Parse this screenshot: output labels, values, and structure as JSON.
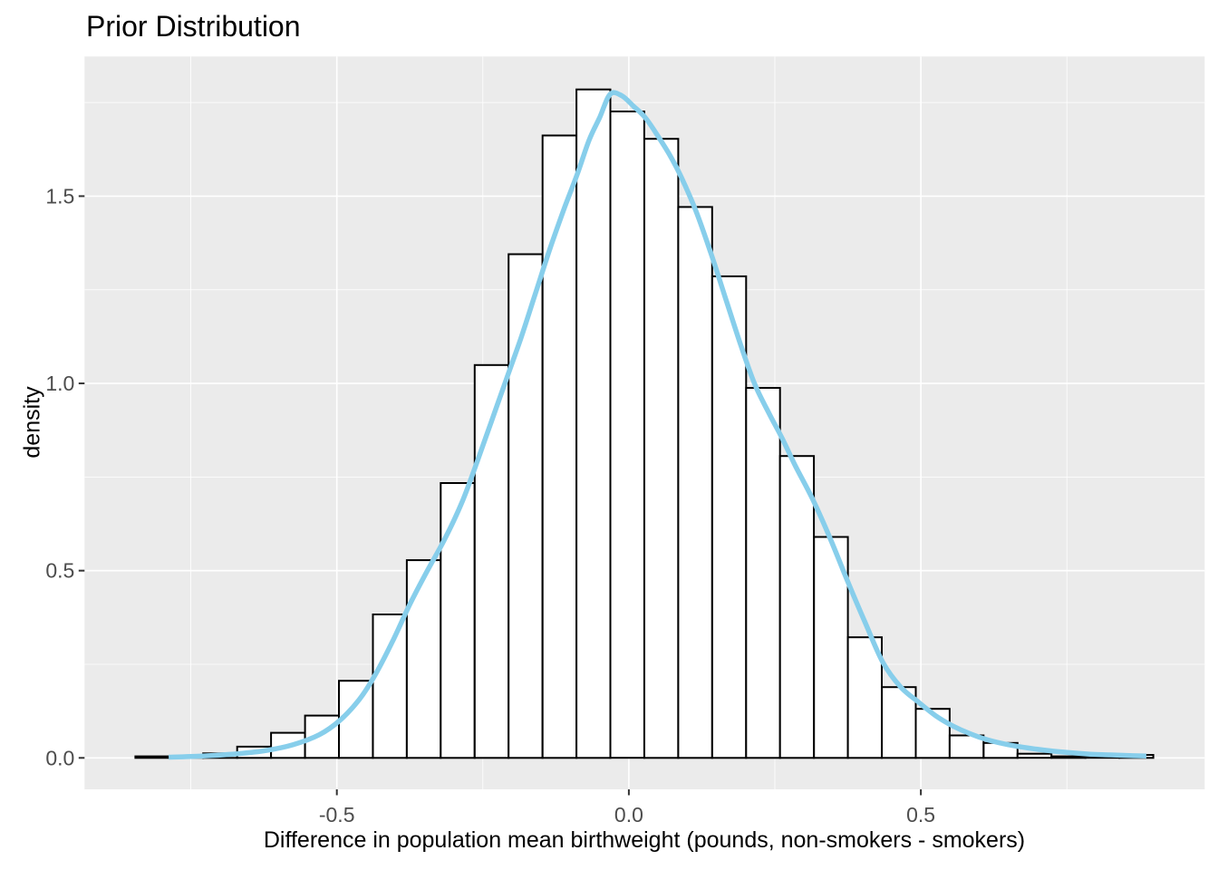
{
  "chart_data": {
    "type": "bar",
    "subtype": "histogram-with-density-overlay",
    "title": "Prior Distribution",
    "xlabel": "Difference in population mean birthweight (pounds, non-smokers - smokers)",
    "ylabel": "density",
    "xlim": [
      -0.932,
      0.986
    ],
    "ylim": [
      -0.084,
      1.873
    ],
    "grid": true,
    "legend_position": "none",
    "x_ticks": {
      "values": [
        -0.5,
        0.0,
        0.5
      ],
      "labels": [
        "-0.5",
        "0.0",
        "0.5"
      ]
    },
    "y_ticks": {
      "values": [
        0.0,
        0.5,
        1.0,
        1.5
      ],
      "labels": [
        "0.0",
        "0.5",
        "1.0",
        "1.5"
      ]
    },
    "x_minor_gridlines": [
      -0.75,
      -0.25,
      0.25,
      0.75
    ],
    "y_minor_gridlines": [
      0.25,
      0.75,
      1.25,
      1.75
    ],
    "histogram": {
      "bin_start": -0.845,
      "binwidth": 0.0581,
      "heights": [
        0.004,
        0.003,
        0.012,
        0.03,
        0.067,
        0.113,
        0.206,
        0.383,
        0.528,
        0.734,
        1.049,
        1.345,
        1.662,
        1.785,
        1.726,
        1.653,
        1.471,
        1.286,
        0.988,
        0.806,
        0.59,
        0.322,
        0.189,
        0.131,
        0.06,
        0.04,
        0.011,
        0.004,
        0.003,
        0.008
      ]
    },
    "density_curve": {
      "peak": {
        "x": -0.032,
        "y": 1.772
      },
      "points": [
        [
          -0.788,
          0.002
        ],
        [
          -0.73,
          0.005
        ],
        [
          -0.67,
          0.011
        ],
        [
          -0.62,
          0.02
        ],
        [
          -0.575,
          0.035
        ],
        [
          -0.53,
          0.062
        ],
        [
          -0.495,
          0.1
        ],
        [
          -0.462,
          0.155
        ],
        [
          -0.435,
          0.22
        ],
        [
          -0.405,
          0.31
        ],
        [
          -0.375,
          0.41
        ],
        [
          -0.345,
          0.5
        ],
        [
          -0.315,
          0.585
        ],
        [
          -0.285,
          0.685
        ],
        [
          -0.26,
          0.79
        ],
        [
          -0.235,
          0.9
        ],
        [
          -0.21,
          1.01
        ],
        [
          -0.185,
          1.12
        ],
        [
          -0.16,
          1.24
        ],
        [
          -0.135,
          1.36
        ],
        [
          -0.11,
          1.47
        ],
        [
          -0.088,
          1.56
        ],
        [
          -0.068,
          1.65
        ],
        [
          -0.05,
          1.71
        ],
        [
          -0.032,
          1.772
        ],
        [
          -0.012,
          1.768
        ],
        [
          0.008,
          1.74
        ],
        [
          0.028,
          1.71
        ],
        [
          0.05,
          1.66
        ],
        [
          0.07,
          1.61
        ],
        [
          0.09,
          1.55
        ],
        [
          0.115,
          1.46
        ],
        [
          0.14,
          1.35
        ],
        [
          0.165,
          1.23
        ],
        [
          0.19,
          1.11
        ],
        [
          0.215,
          1.0
        ],
        [
          0.24,
          0.92
        ],
        [
          0.262,
          0.855
        ],
        [
          0.285,
          0.78
        ],
        [
          0.315,
          0.69
        ],
        [
          0.345,
          0.585
        ],
        [
          0.375,
          0.47
        ],
        [
          0.405,
          0.36
        ],
        [
          0.435,
          0.255
        ],
        [
          0.465,
          0.19
        ],
        [
          0.495,
          0.15
        ],
        [
          0.525,
          0.113
        ],
        [
          0.555,
          0.085
        ],
        [
          0.585,
          0.064
        ],
        [
          0.615,
          0.048
        ],
        [
          0.65,
          0.035
        ],
        [
          0.685,
          0.026
        ],
        [
          0.72,
          0.019
        ],
        [
          0.755,
          0.014
        ],
        [
          0.79,
          0.01
        ],
        [
          0.825,
          0.008
        ],
        [
          0.858,
          0.006
        ],
        [
          0.886,
          0.005
        ]
      ]
    },
    "colors": {
      "panel_background": "#EBEBEB",
      "gridline": "#FFFFFF",
      "bar_fill": "#FFFFFF",
      "bar_stroke": "#000000",
      "density_curve": "#87CEEB",
      "tick_label": "#4D4D4D",
      "tick_mark": "#333333",
      "title_text": "#000000",
      "axis_title_text": "#000000"
    }
  }
}
